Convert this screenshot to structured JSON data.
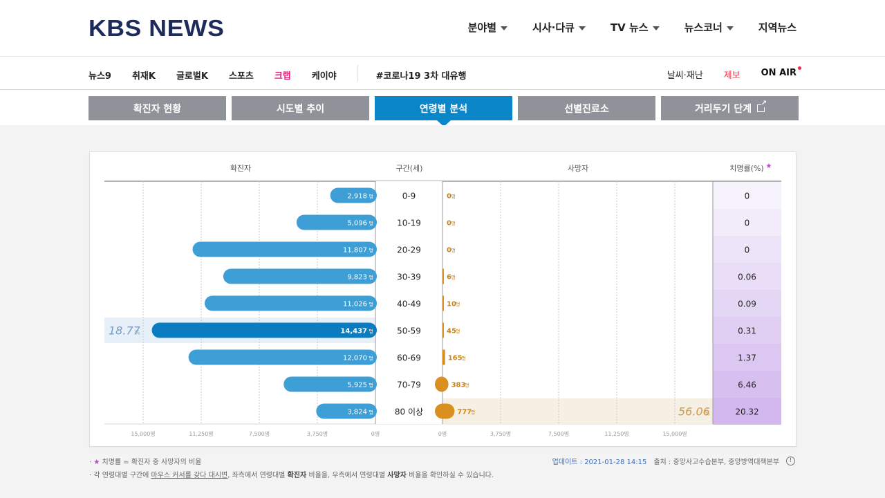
{
  "header": {
    "logo": "KBS NEWS",
    "nav": [
      "분야별",
      "시사·다큐",
      "TV 뉴스",
      "뉴스코너",
      "지역뉴스"
    ]
  },
  "subnav": {
    "left": [
      "뉴스9",
      "취재K",
      "글로벌K",
      "스포츠",
      "크랩",
      "케이야"
    ],
    "hashtag": "#코로나19 3차 대유행",
    "weather": "날씨·재난",
    "report": "제보",
    "onair": "ON AIR"
  },
  "tabs": [
    "확진자 현황",
    "시도별 추이",
    "연령별 분석",
    "선별진료소",
    "거리두기 단계"
  ],
  "active_tab": 2,
  "chart_data": {
    "type": "table",
    "columns": {
      "confirmed": "확진자",
      "age": "구간(세)",
      "deaths": "사망자",
      "cfr": "치명률(%)"
    },
    "unit": "명",
    "rows": [
      {
        "age": "0-9",
        "confirmed": 2918,
        "confirmed_label": "2,918",
        "deaths": 0,
        "cfr": "0"
      },
      {
        "age": "10-19",
        "confirmed": 5096,
        "confirmed_label": "5,096",
        "deaths": 0,
        "cfr": "0"
      },
      {
        "age": "20-29",
        "confirmed": 11807,
        "confirmed_label": "11,807",
        "deaths": 0,
        "cfr": "0"
      },
      {
        "age": "30-39",
        "confirmed": 9823,
        "confirmed_label": "9,823",
        "deaths": 6,
        "cfr": "0.06"
      },
      {
        "age": "40-49",
        "confirmed": 11026,
        "confirmed_label": "11,026",
        "deaths": 10,
        "cfr": "0.09"
      },
      {
        "age": "50-59",
        "confirmed": 14437,
        "confirmed_label": "14,437",
        "deaths": 45,
        "cfr": "0.31"
      },
      {
        "age": "60-69",
        "confirmed": 12070,
        "confirmed_label": "12,070",
        "deaths": 165,
        "cfr": "1.37"
      },
      {
        "age": "70-79",
        "confirmed": 5925,
        "confirmed_label": "5,925",
        "deaths": 383,
        "cfr": "6.46"
      },
      {
        "age": "80 이상",
        "confirmed": 3824,
        "confirmed_label": "3,824",
        "deaths": 777,
        "cfr": "20.32"
      }
    ],
    "highlight_confirmed": {
      "row": 5,
      "share": "18.77",
      "unit": "%"
    },
    "highlight_deaths": {
      "row": 8,
      "share": "56.06",
      "unit": "%"
    },
    "axis_ticks": [
      "15,000명",
      "11,250명",
      "7,500명",
      "3,750명",
      "0명"
    ],
    "axis_tick_values": [
      15000,
      11250,
      7500,
      3750,
      0
    ],
    "xlim": [
      0,
      15000
    ],
    "colors": {
      "bar": "#3d9fd6",
      "bar_highlight": "#0a7cbf",
      "death": "#d9901f",
      "cfr_low": "#f6f3fc",
      "cfr_high": "#d2b8ee"
    }
  },
  "footer": {
    "note1_star": "★",
    "note1": " 치명률 = 확진자 중 사망자의 비율",
    "note2_a": "· 각 연령대별 구간에 ",
    "note2_u": "마우스 커서를 갖다 대시면",
    "note2_b": ", 좌측에서 연령대별 ",
    "note2_c": "확진자",
    "note2_d": " 비율을, 우측에서 연령대별 ",
    "note2_e": "사망자",
    "note2_f": " 비율을 확인하실 수 있습니다.",
    "update_label": "업데이트 : 2021-01-28 14:15",
    "source": "출처 : 중앙사고수습본부, 중앙방역대책본부"
  }
}
